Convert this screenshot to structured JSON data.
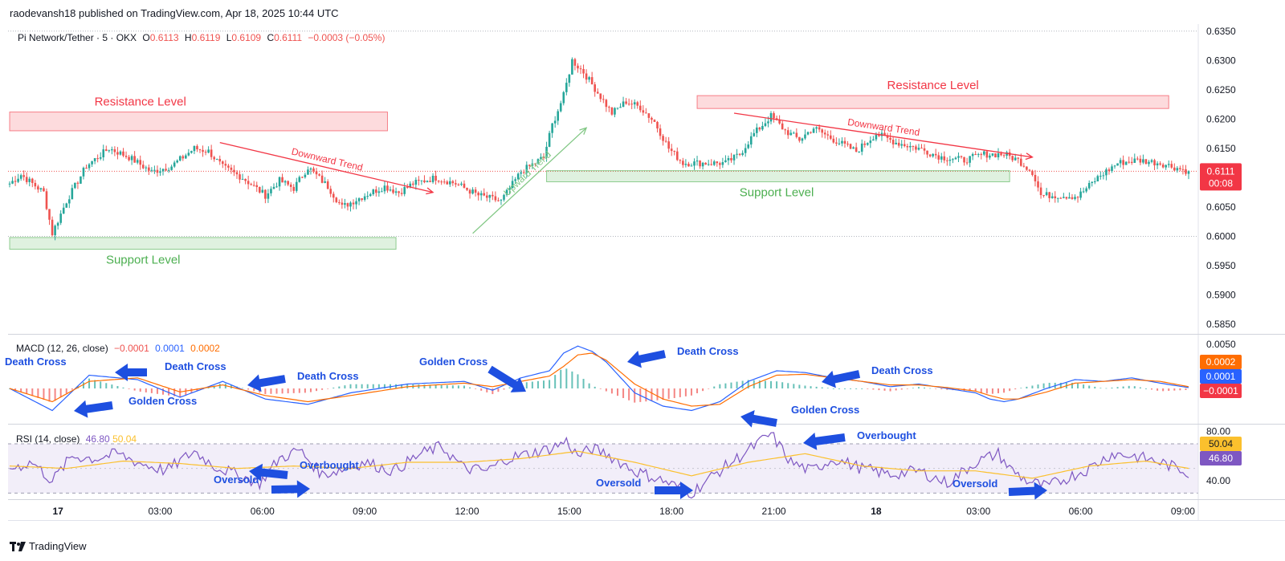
{
  "header": {
    "publisher": "raodevansh18 published on TradingView.com, Apr 18, 2025 10:44 UTC"
  },
  "legend": {
    "symbol": "Pi Network/Tether · 5 · OKX",
    "open_label": "O",
    "open": "0.6113",
    "high_label": "H",
    "high": "0.6119",
    "low_label": "L",
    "low": "0.6109",
    "close_label": "C",
    "close": "0.6111",
    "change": "−0.0003 (−0.05%)"
  },
  "macd_legend": {
    "title": "MACD (12, 26, close)",
    "hist": "−0.0001",
    "macd": "0.0001",
    "signal": "0.0002"
  },
  "rsi_legend": {
    "title": "RSI (14, close)",
    "rsi": "46.80",
    "ma": "50.04"
  },
  "price_badge": {
    "value": "0.6111",
    "countdown": "00:08"
  },
  "macd_badges": [
    "0.0002",
    "0.0001",
    "−0.0001"
  ],
  "rsi_badges": [
    "50.04",
    "46.80"
  ],
  "brand": "TradingView",
  "colors": {
    "up": "#26a69a",
    "down": "#ef5350",
    "macd": "#2962ff",
    "signal": "#ff6d00",
    "rsi": "#7e57c2",
    "rsi_ma": "#fbc02d",
    "annotation_blue": "#1e4fe0",
    "resistance": "#f23645",
    "support": "#4caf50",
    "trend_up": "#81c784"
  },
  "chart_data": [
    {
      "type": "candlestick",
      "title": "Pi Network/Tether · 5 · OKX",
      "ylim": [
        0.5835,
        0.6362
      ],
      "y_ticks": [
        "0.6350",
        "0.6300",
        "0.6250",
        "0.6200",
        "0.6150",
        "0.6100",
        "0.6050",
        "0.6000",
        "0.5950",
        "0.5900",
        "0.5850"
      ],
      "x_ticks": [
        "17",
        "03:00",
        "06:00",
        "09:00",
        "12:00",
        "15:00",
        "18:00",
        "21:00",
        "18",
        "03:00",
        "06:00",
        "09:00"
      ],
      "close_path": [
        [
          0,
          0.609
        ],
        [
          4,
          0.6105
        ],
        [
          12,
          0.6075
        ],
        [
          15,
          0.6005
        ],
        [
          20,
          0.606
        ],
        [
          27,
          0.612
        ],
        [
          35,
          0.615
        ],
        [
          42,
          0.6135
        ],
        [
          50,
          0.611
        ],
        [
          57,
          0.612
        ],
        [
          65,
          0.615
        ],
        [
          70,
          0.6145
        ],
        [
          75,
          0.6118
        ],
        [
          82,
          0.61
        ],
        [
          90,
          0.607
        ],
        [
          95,
          0.6095
        ],
        [
          100,
          0.6082
        ],
        [
          105,
          0.6118
        ],
        [
          112,
          0.6085
        ],
        [
          117,
          0.605
        ],
        [
          125,
          0.607
        ],
        [
          132,
          0.6085
        ],
        [
          137,
          0.6075
        ],
        [
          142,
          0.609
        ],
        [
          150,
          0.61
        ],
        [
          157,
          0.609
        ],
        [
          165,
          0.607
        ],
        [
          173,
          0.606
        ],
        [
          180,
          0.611
        ],
        [
          188,
          0.6135
        ],
        [
          191,
          0.619
        ],
        [
          195,
          0.624
        ],
        [
          198,
          0.63
        ],
        [
          202,
          0.628
        ],
        [
          207,
          0.6245
        ],
        [
          212,
          0.621
        ],
        [
          217,
          0.623
        ],
        [
          222,
          0.622
        ],
        [
          227,
          0.6195
        ],
        [
          232,
          0.615
        ],
        [
          237,
          0.6125
        ],
        [
          245,
          0.6125
        ],
        [
          252,
          0.6125
        ],
        [
          257,
          0.614
        ],
        [
          262,
          0.6175
        ],
        [
          268,
          0.6205
        ],
        [
          273,
          0.618
        ],
        [
          278,
          0.6165
        ],
        [
          283,
          0.6185
        ],
        [
          290,
          0.6165
        ],
        [
          298,
          0.6145
        ],
        [
          305,
          0.6175
        ],
        [
          312,
          0.616
        ],
        [
          320,
          0.615
        ],
        [
          328,
          0.6135
        ],
        [
          336,
          0.613
        ],
        [
          343,
          0.614
        ],
        [
          350,
          0.614
        ],
        [
          355,
          0.613
        ],
        [
          360,
          0.611
        ],
        [
          363,
          0.607
        ],
        [
          368,
          0.607
        ],
        [
          376,
          0.6068
        ],
        [
          383,
          0.61
        ],
        [
          390,
          0.6125
        ],
        [
          397,
          0.613
        ],
        [
          405,
          0.6125
        ],
        [
          415,
          0.6111
        ]
      ],
      "annotations": [
        {
          "text": "Resistance Level",
          "color": "#f23645",
          "zone": [
            0.618,
            0.6212
          ]
        },
        {
          "text": "Support Level",
          "color": "#4caf50",
          "zone": [
            0.5978,
            0.5998
          ]
        },
        {
          "text": "Downward Trend",
          "color": "#f23645",
          "from": [
            0.616,
            74
          ],
          "to": [
            0.6075,
            149
          ]
        },
        {
          "text": "Upward Trend",
          "color": "#81c784",
          "from": [
            0.6005,
            163
          ],
          "to": [
            0.6185,
            203
          ]
        },
        {
          "text": "Resistance Level",
          "color": "#f23645",
          "zone": [
            0.6218,
            0.624
          ]
        },
        {
          "text": "Support Level",
          "color": "#4caf50",
          "zone": [
            0.6093,
            0.6112
          ]
        },
        {
          "text": "Downward Trend",
          "color": "#f23645",
          "from": [
            0.621,
            255
          ],
          "to": [
            0.6135,
            360
          ]
        }
      ]
    },
    {
      "type": "line",
      "title": "MACD (12, 26, close)",
      "y_ticks": [
        "0.0050",
        "0.0000"
      ],
      "ylim": [
        -0.004,
        0.006
      ],
      "series": [
        {
          "name": "MACD",
          "color": "#2962ff",
          "x": [
            0,
            15,
            28,
            45,
            60,
            75,
            90,
            105,
            120,
            140,
            160,
            170,
            180,
            190,
            195,
            200,
            205,
            210,
            220,
            230,
            240,
            250,
            260,
            270,
            280,
            290,
            300,
            310,
            320,
            330,
            340,
            345,
            350,
            355,
            365,
            375,
            385,
            395,
            405,
            415
          ],
          "values": [
            0,
            -0.0025,
            0.0015,
            0.001,
            -0.001,
            0.0008,
            -0.0012,
            -0.0018,
            -0.0005,
            0.0005,
            0.0008,
            -0.0002,
            0.0012,
            0.002,
            0.004,
            0.0048,
            0.0042,
            0.003,
            -0.0005,
            -0.002,
            -0.0025,
            -0.0015,
            0.0008,
            0.002,
            0.0018,
            0.0012,
            0.0008,
            0.0002,
            0.0005,
            0.0,
            -0.0005,
            -0.0012,
            -0.0015,
            -0.0012,
            0.0,
            0.001,
            0.0008,
            0.0012,
            0.0006,
            0.0001
          ]
        },
        {
          "name": "Signal",
          "color": "#ff6d00",
          "x": [
            0,
            15,
            28,
            45,
            60,
            75,
            90,
            105,
            120,
            140,
            160,
            170,
            180,
            190,
            195,
            200,
            205,
            210,
            220,
            230,
            240,
            250,
            260,
            270,
            280,
            290,
            300,
            310,
            320,
            330,
            340,
            345,
            350,
            355,
            365,
            375,
            385,
            395,
            405,
            415
          ],
          "values": [
            0,
            -0.0015,
            0.0008,
            0.0012,
            -0.0004,
            0.0004,
            -0.0008,
            -0.0015,
            -0.0008,
            0.0002,
            0.0006,
            0.0002,
            0.0008,
            0.0014,
            0.0025,
            0.0038,
            0.004,
            0.0032,
            0.0005,
            -0.0012,
            -0.002,
            -0.0018,
            0.0002,
            0.0015,
            0.0016,
            0.0012,
            0.0008,
            0.0004,
            0.0004,
            0.0001,
            -0.0003,
            -0.0008,
            -0.0012,
            -0.0012,
            -0.0004,
            0.0006,
            0.0008,
            0.001,
            0.0008,
            0.0002
          ]
        }
      ],
      "annotations": [
        "Death Cross",
        "Death Cross",
        "Golden Cross",
        "Death Cross",
        "Golden Cross",
        "Death Cross",
        "Golden Cross",
        "Death Cross"
      ]
    },
    {
      "type": "line",
      "title": "RSI (14, close)",
      "y_ticks": [
        "80.00",
        "40.00"
      ],
      "ylim": [
        25,
        85
      ],
      "bands": [
        70,
        30
      ],
      "series": [
        {
          "name": "RSI",
          "color": "#7e57c2",
          "x": [
            0,
            8,
            15,
            22,
            30,
            38,
            45,
            55,
            65,
            72,
            80,
            88,
            95,
            102,
            110,
            118,
            125,
            135,
            145,
            152,
            160,
            168,
            175,
            183,
            190,
            196,
            200,
            205,
            210,
            220,
            230,
            240,
            248,
            256,
            262,
            268,
            275,
            282,
            290,
            300,
            310,
            320,
            330,
            340,
            348,
            352,
            358,
            365,
            372,
            380,
            388,
            396,
            405,
            415
          ],
          "values": [
            50,
            55,
            40,
            60,
            58,
            62,
            55,
            48,
            64,
            52,
            45,
            38,
            58,
            65,
            45,
            50,
            55,
            48,
            62,
            68,
            50,
            48,
            58,
            62,
            66,
            72,
            60,
            66,
            62,
            48,
            40,
            30,
            45,
            58,
            68,
            78,
            55,
            48,
            58,
            50,
            45,
            48,
            38,
            55,
            62,
            50,
            40,
            35,
            42,
            50,
            62,
            60,
            55,
            46.8
          ]
        },
        {
          "name": "RSI MA",
          "color": "#fbc02d",
          "x": [
            0,
            20,
            40,
            60,
            80,
            100,
            120,
            140,
            160,
            180,
            200,
            220,
            240,
            260,
            280,
            300,
            320,
            340,
            360,
            380,
            400,
            415
          ],
          "values": [
            52,
            50,
            56,
            54,
            50,
            52,
            50,
            55,
            55,
            58,
            64,
            55,
            44,
            55,
            62,
            52,
            48,
            48,
            42,
            52,
            56,
            50.04
          ]
        }
      ],
      "annotations": [
        "Overbought",
        "Oversold",
        "Overbought",
        "Oversold",
        "Oversold"
      ]
    }
  ]
}
